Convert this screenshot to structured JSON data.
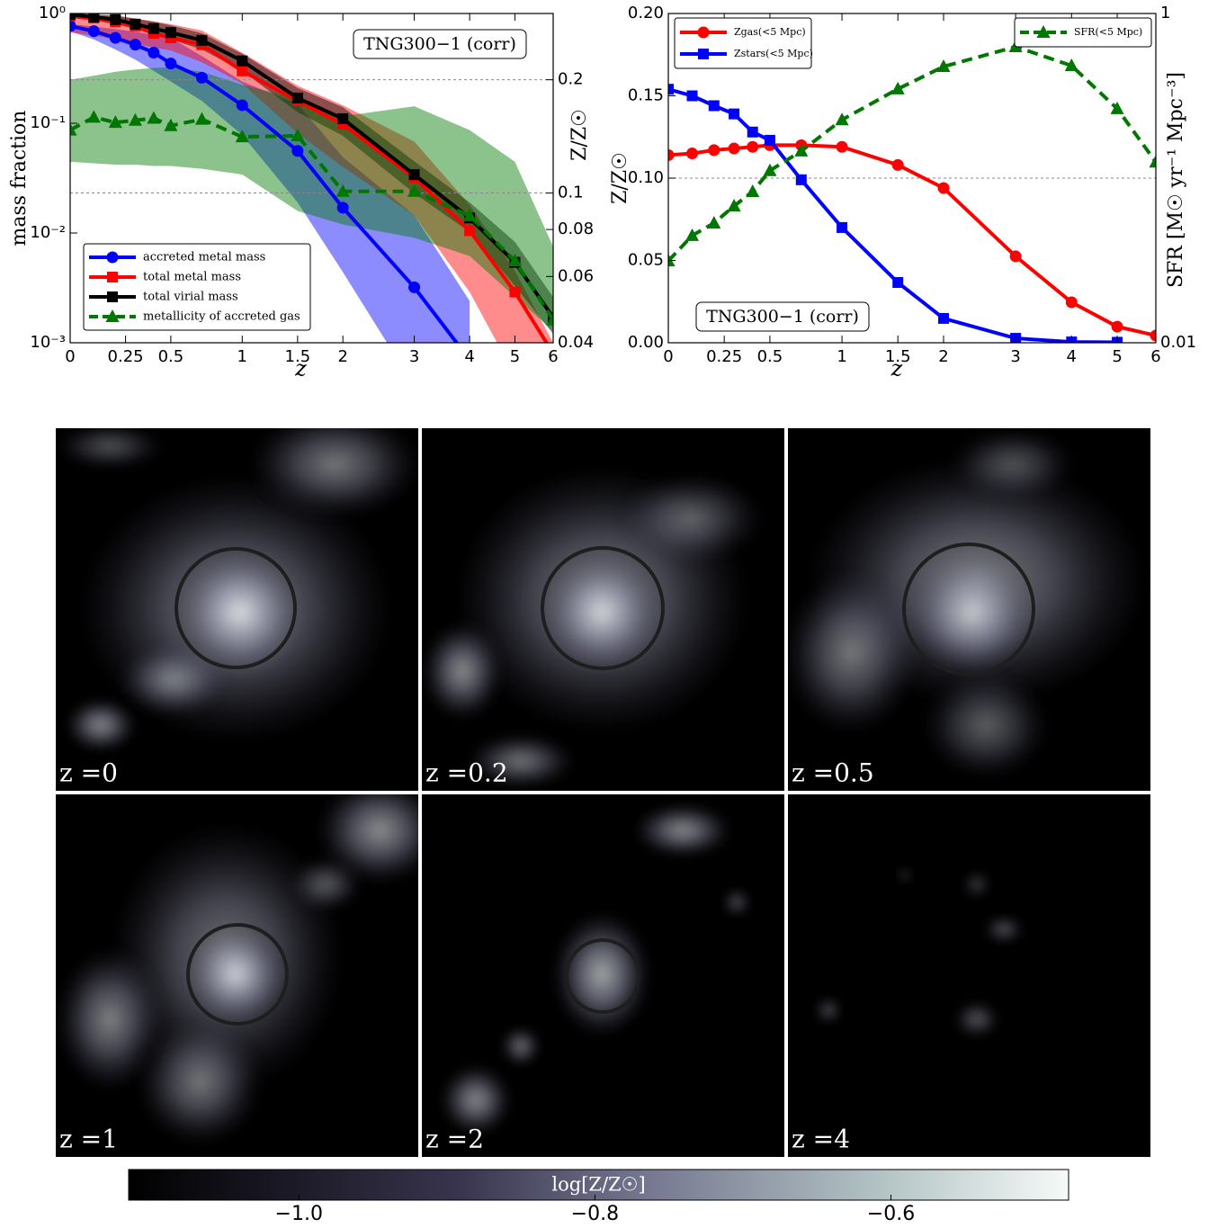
{
  "chart_data": [
    {
      "type": "line",
      "xlabel": "z",
      "ylabel": "mass  fraction",
      "y2label": "Z/Z☉",
      "annotation": "TNG300−1 (corr)",
      "annotation_loc": "upper right",
      "xscale": "log1p",
      "yscale": "log",
      "y2scale": "log",
      "x": [
        0,
        0.1,
        0.2,
        0.3,
        0.4,
        0.5,
        0.7,
        1,
        1.5,
        2,
        3,
        4,
        5,
        6
      ],
      "xlim": [
        0,
        6
      ],
      "xticks": [
        0,
        0.25,
        0.5,
        1,
        1.5,
        2,
        3,
        4,
        5,
        6
      ],
      "ylim": [
        0.001,
        1
      ],
      "yticks": [
        {
          "value": 0.001,
          "label": "10⁻³"
        },
        {
          "value": 0.01,
          "label": "10⁻²"
        },
        {
          "value": 0.1,
          "label": "10⁻¹"
        },
        {
          "value": 1,
          "label": "10⁰"
        }
      ],
      "y2lim": [
        0.04,
        0.3
      ],
      "y2ticks": [
        0.04,
        0.06,
        0.08,
        0.1,
        0.2
      ],
      "hlines": [
        0.1,
        0.2
      ],
      "hlines_axis": "y2",
      "legend": "lower left",
      "series": [
        {
          "name": "accreted metal mass",
          "color": "#0000ff",
          "marker": "o",
          "linestyle": "-",
          "values": [
            0.77,
            0.69,
            0.6,
            0.52,
            0.44,
            0.35,
            0.26,
            0.146,
            0.056,
            0.017,
            0.0032,
            0.0007,
            null,
            null
          ],
          "lower": [
            0.69,
            0.58,
            0.47,
            0.38,
            0.3,
            0.24,
            0.16,
            0.078,
            0.019,
            0.0044,
            0.0004,
            0.0001,
            null,
            null
          ],
          "upper": [
            0.8,
            0.76,
            0.72,
            0.68,
            0.64,
            0.6,
            0.41,
            0.24,
            0.15,
            0.049,
            0.0145,
            0.0024,
            null,
            null
          ]
        },
        {
          "name": "total metal mass",
          "color": "#ff0000",
          "marker": "s",
          "linestyle": "-",
          "values": [
            0.95,
            0.91,
            0.84,
            0.77,
            0.66,
            0.6,
            0.52,
            0.3,
            0.16,
            0.098,
            0.032,
            0.0105,
            0.0029,
            0.0008
          ],
          "lower": [
            0.67,
            0.63,
            0.58,
            0.53,
            0.49,
            0.46,
            0.36,
            0.23,
            0.081,
            0.04,
            0.0145,
            0.0029,
            0.0005,
            0.0002
          ],
          "upper": [
            0.98,
            0.97,
            0.95,
            0.9,
            0.85,
            0.8,
            0.7,
            0.44,
            0.22,
            0.146,
            0.068,
            0.018,
            0.0045,
            0.001
          ]
        },
        {
          "name": "total virial mass",
          "color": "#000000",
          "marker": "s",
          "linestyle": "-",
          "values": [
            0.98,
            0.93,
            0.88,
            0.8,
            0.73,
            0.67,
            0.57,
            0.37,
            0.17,
            0.11,
            0.034,
            0.0137,
            0.0054,
            0.0017
          ],
          "lower": [
            0.91,
            0.86,
            0.8,
            0.72,
            0.64,
            0.58,
            0.47,
            0.3,
            0.126,
            0.077,
            0.023,
            0.0102,
            0.0033,
            0.0012
          ],
          "upper": [
            0.99,
            0.98,
            0.96,
            0.9,
            0.84,
            0.78,
            0.66,
            0.43,
            0.21,
            0.14,
            0.045,
            0.019,
            0.0083,
            0.0026
          ]
        },
        {
          "name": "metallicity of accreted gas",
          "color": "#007700",
          "marker": "^",
          "linestyle": "--",
          "axis": "y2",
          "values": [
            0.147,
            0.159,
            0.154,
            0.156,
            0.158,
            0.151,
            0.157,
            0.141,
            0.142,
            0.101,
            0.101,
            0.087,
            0.066,
            0.046
          ],
          "lower": [
            0.121,
            0.12,
            0.119,
            0.119,
            0.118,
            0.118,
            0.116,
            0.112,
            0.0896,
            0.0825,
            0.076,
            0.068,
            0.053,
            0.043
          ],
          "upper": [
            0.2,
            0.205,
            0.21,
            0.213,
            0.215,
            0.216,
            0.21,
            0.194,
            0.178,
            0.16,
            0.17,
            0.147,
            0.121,
            0.072
          ]
        }
      ]
    },
    {
      "type": "line",
      "xlabel": "z",
      "ylabel": "Z/Z☉",
      "y2label": "SFR [M☉ yr⁻¹ Mpc⁻³]",
      "annotation": "TNG300−1 (corr)",
      "annotation_loc": "lower center",
      "xscale": "log1p",
      "yscale": "linear",
      "y2scale": "log",
      "x": [
        0,
        0.1,
        0.2,
        0.3,
        0.4,
        0.5,
        0.7,
        1,
        1.5,
        2,
        3,
        4,
        5,
        6
      ],
      "xlim": [
        0,
        6
      ],
      "xticks": [
        0,
        0.25,
        0.5,
        1,
        1.5,
        2,
        3,
        4,
        5,
        6
      ],
      "ylim": [
        0,
        0.2
      ],
      "yticks": [
        {
          "value": 0,
          "label": "0.00"
        },
        {
          "value": 0.05,
          "label": "0.05"
        },
        {
          "value": 0.1,
          "label": "0.10"
        },
        {
          "value": 0.15,
          "label": "0.15"
        },
        {
          "value": 0.2,
          "label": "0.20"
        }
      ],
      "y2lim": [
        0.01,
        1
      ],
      "y2ticks": [
        0.01,
        1
      ],
      "hlines": [
        0.1
      ],
      "hlines_axis": "y",
      "legend": "upper left",
      "legend2": "upper right",
      "series": [
        {
          "name": "Zgas(<5 Mpc)",
          "color": "#ff0000",
          "marker": "o",
          "linestyle": "-",
          "values": [
            0.114,
            0.115,
            0.117,
            0.118,
            0.119,
            0.12,
            0.12,
            0.119,
            0.108,
            0.094,
            0.0525,
            0.0246,
            0.0098,
            0.0044
          ]
        },
        {
          "name": "Zstars(<5 Mpc)",
          "color": "#0000ff",
          "marker": "s",
          "linestyle": "-",
          "values": [
            0.154,
            0.15,
            0.144,
            0.139,
            0.128,
            0.123,
            0.099,
            0.07,
            0.0366,
            0.0148,
            0.0027,
            0.0005,
            0.0003,
            null
          ]
        },
        {
          "name": "SFR(<5 Mpc)",
          "color": "#007700",
          "marker": "^",
          "linestyle": "--",
          "axis": "y2",
          "values": [
            0.0314,
            0.0448,
            0.0533,
            0.0677,
            0.0828,
            0.111,
            0.146,
            0.226,
            0.348,
            0.476,
            0.628,
            0.482,
            0.264,
            0.125
          ]
        }
      ]
    }
  ],
  "panels": [
    {
      "label": "z =0"
    },
    {
      "label": "z =0.2"
    },
    {
      "label": "z =0.5"
    },
    {
      "label": "z =1"
    },
    {
      "label": "z =2"
    },
    {
      "label": "z =4"
    }
  ],
  "colorbar": {
    "label": "log[Z/Z☉]",
    "lim": [
      -1.115,
      -0.48
    ],
    "ticks": [
      {
        "value": -1,
        "label": "−1.0"
      },
      {
        "value": -0.8,
        "label": "−0.8"
      },
      {
        "value": -0.6,
        "label": "−0.6"
      }
    ]
  }
}
